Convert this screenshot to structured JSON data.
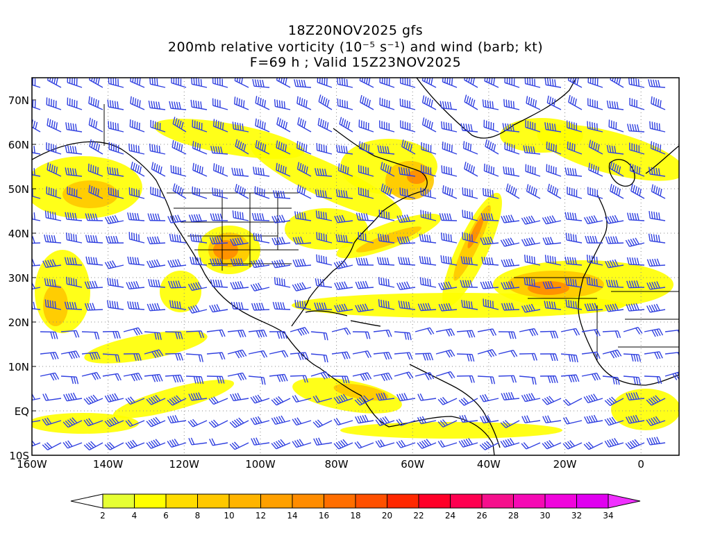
{
  "title": {
    "line1": "18Z20NOV2025 gfs",
    "line2": "200mb relative vorticity (10⁻⁵ s⁻¹) and wind (barb; kt)",
    "line3": "F=69 h ; Valid 15Z23NOV2025"
  },
  "map": {
    "lat_labels": [
      "70N",
      "60N",
      "50N",
      "40N",
      "30N",
      "20N",
      "10N",
      "EQ",
      "10S"
    ],
    "lon_labels": [
      "160W",
      "140W",
      "120W",
      "100W",
      "80W",
      "60W",
      "40W",
      "20W",
      "0"
    ],
    "barb_color": "#3040e0",
    "coast_color": "#000000"
  },
  "colorbar": {
    "labels": [
      "2",
      "4",
      "6",
      "8",
      "10",
      "12",
      "14",
      "16",
      "18",
      "20",
      "22",
      "24",
      "26",
      "28",
      "30",
      "32",
      "34"
    ],
    "colors": [
      "#e6ff33",
      "#ffff00",
      "#ffdc00",
      "#ffc800",
      "#ffb400",
      "#ffa000",
      "#ff8c00",
      "#ff6e00",
      "#ff5000",
      "#ff2800",
      "#ff0028",
      "#ff0050",
      "#f5108c",
      "#f50ab4",
      "#f005dc",
      "#e000f0"
    ],
    "under_color": "#ffffff",
    "over_color": "#f030ff"
  }
}
